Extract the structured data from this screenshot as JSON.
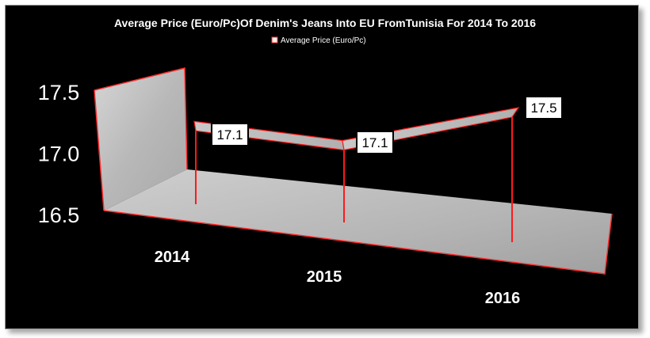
{
  "chart_data": {
    "type": "line",
    "title": "Average Price (Euro/Pc)Of Denim's Jeans Into EU FromTunisia For 2014 To 2016",
    "categories": [
      "2014",
      "2015",
      "2016"
    ],
    "series": [
      {
        "name": "Average Price (Euro/Pc)",
        "values": [
          17.1,
          17.1,
          17.5
        ]
      }
    ],
    "data_labels": [
      "17.1",
      "17.1",
      "17.5"
    ],
    "y_ticks": [
      "16.5",
      "17.0",
      "17.5"
    ],
    "ylim": [
      16.5,
      17.5
    ],
    "legend_position": "top",
    "style": "3d-ribbon",
    "colors": {
      "series": "#ff1a1a",
      "surface": "#c4c4c4",
      "background": "#000000"
    }
  }
}
